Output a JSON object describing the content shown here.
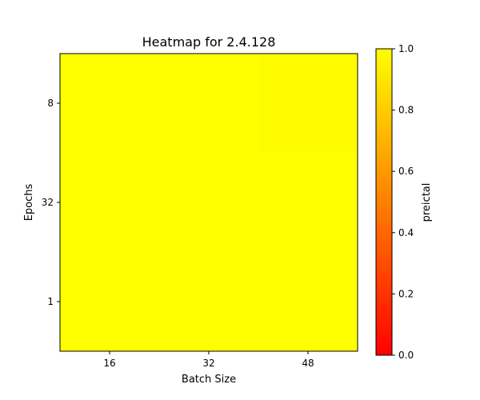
{
  "chart_data": {
    "type": "heatmap",
    "title": "Heatmap for 2.4.128",
    "xlabel": "Batch Size",
    "ylabel": "Epochs",
    "x_categories": [
      "16",
      "32",
      "48"
    ],
    "y_categories": [
      "8",
      "32",
      "1"
    ],
    "values": [
      [
        1.0,
        1.0,
        0.99
      ],
      [
        1.0,
        1.0,
        1.0
      ],
      [
        1.0,
        1.0,
        1.0
      ]
    ],
    "colorbar": {
      "label": "preictal",
      "min": 0.0,
      "max": 1.0,
      "ticks": [
        "0.0",
        "0.2",
        "0.4",
        "0.6",
        "0.8",
        "1.0"
      ],
      "colormap": "autumn",
      "color_low": "#ff0000",
      "color_high": "#ffff00"
    }
  }
}
